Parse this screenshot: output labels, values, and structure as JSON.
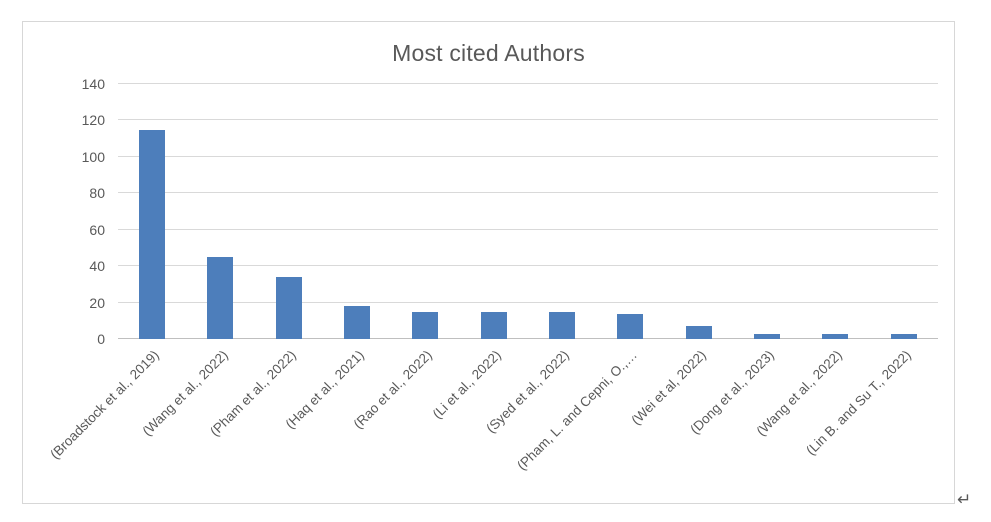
{
  "chart_data": {
    "type": "bar",
    "title": "Most cited Authors",
    "categories": [
      "(Broadstock et al., 2019)",
      "(Wang et al., 2022)",
      "(Pham et al., 2022)",
      "(Haq et al., 2021)",
      "(Rao et al., 2022)",
      "(Li et al., 2022)",
      "(Syed et al., 2022)",
      "(Pham, L. and  Cepni, O.,…",
      "(Wei et al, 2022)",
      "(Dong et al., 2023)",
      "(Wang et al., 2022)",
      "(Lin B. and Su T., 2022)"
    ],
    "values": [
      115,
      45,
      34,
      18,
      15,
      15,
      15,
      14,
      7,
      3,
      3,
      3
    ],
    "xlabel": "",
    "ylabel": "",
    "ylim": [
      0,
      140
    ],
    "yticks": [
      0,
      20,
      40,
      60,
      80,
      100,
      120,
      140
    ],
    "grid": true,
    "legend_position": "none",
    "bar_color": "#4d7ebb",
    "grid_color": "#d9d9d9",
    "axis_line_color": "#bfbfbf",
    "text_color": "#595959"
  },
  "annotations": {
    "return_mark": "↵"
  }
}
